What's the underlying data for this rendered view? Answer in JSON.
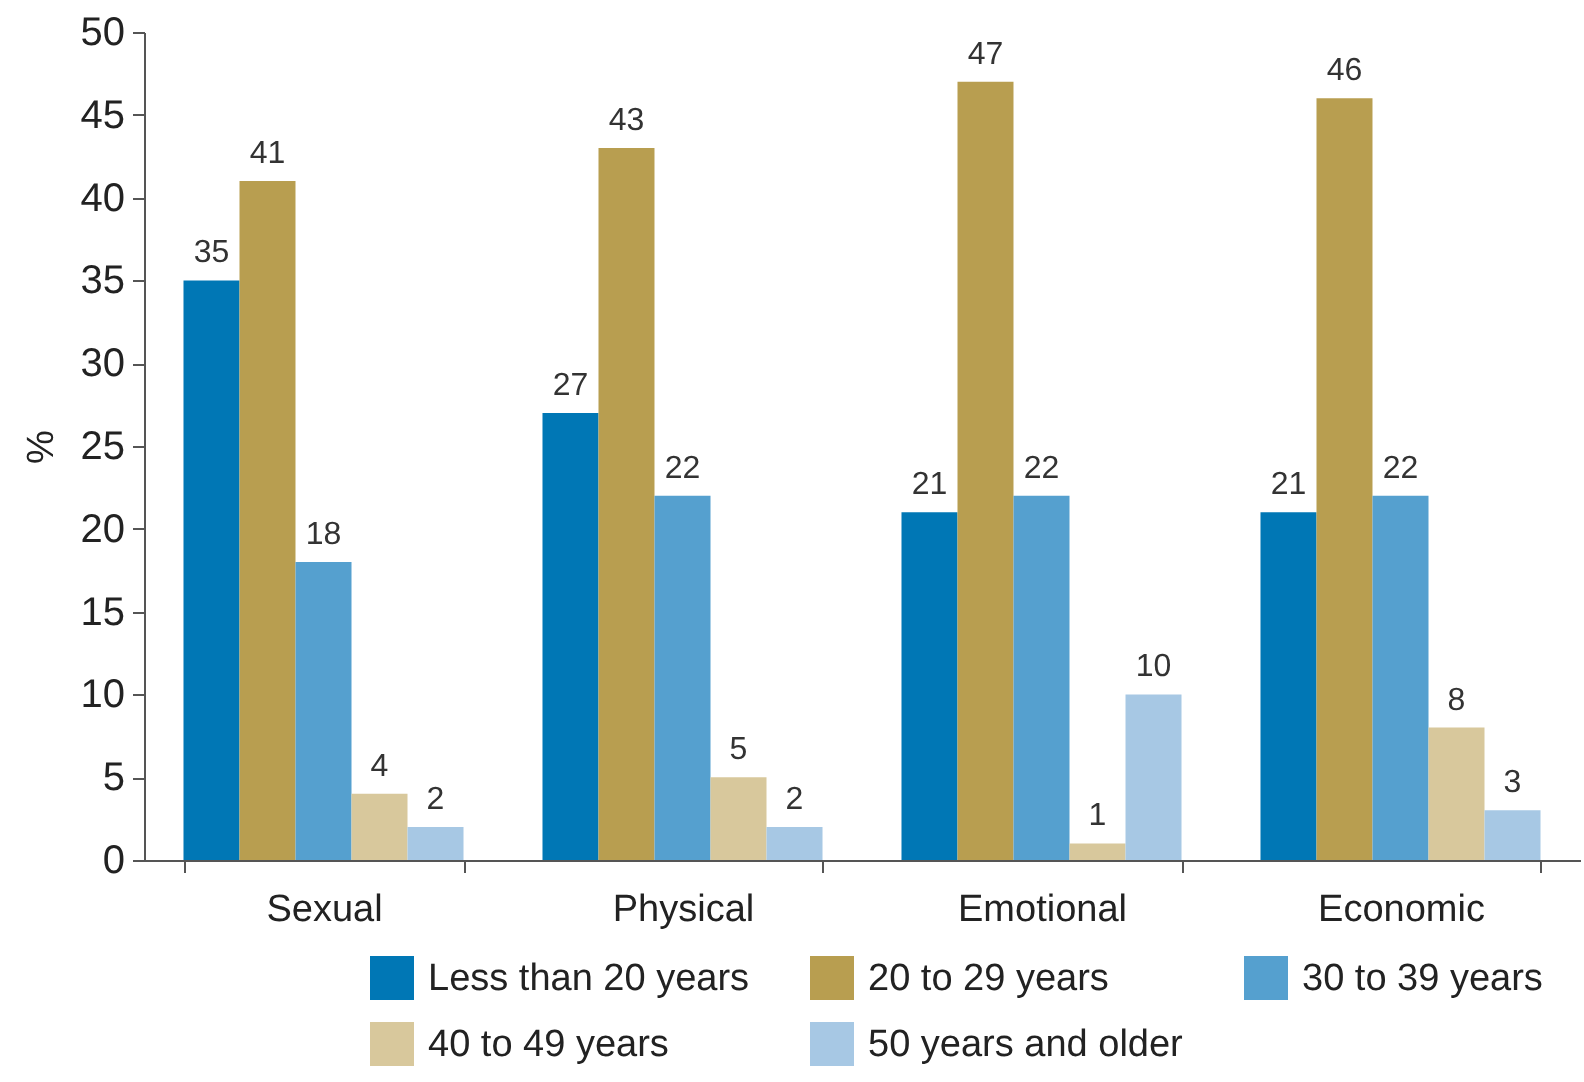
{
  "chart_data": {
    "type": "bar",
    "ylabel": "%",
    "categories": [
      "Sexual",
      "Physical",
      "Emotional",
      "Economic"
    ],
    "series": [
      {
        "name": "Less than 20 years",
        "color": "#0077b5",
        "values": [
          35,
          27,
          21,
          21
        ]
      },
      {
        "name": "20 to 29 years",
        "color": "#b89e50",
        "values": [
          41,
          43,
          47,
          46
        ]
      },
      {
        "name": "30 to 39 years",
        "color": "#55a0cf",
        "values": [
          18,
          22,
          22,
          22
        ]
      },
      {
        "name": "40 to 49 years",
        "color": "#d8c89c",
        "values": [
          4,
          5,
          1,
          8
        ]
      },
      {
        "name": "50 years and older",
        "color": "#a7c8e4",
        "values": [
          2,
          2,
          10,
          3
        ]
      }
    ],
    "ylim": [
      0,
      50
    ],
    "yticks": [
      0,
      5,
      10,
      15,
      20,
      25,
      30,
      35,
      40,
      45,
      50
    ],
    "data_labels": true,
    "legend": "bottom",
    "grid": false
  }
}
